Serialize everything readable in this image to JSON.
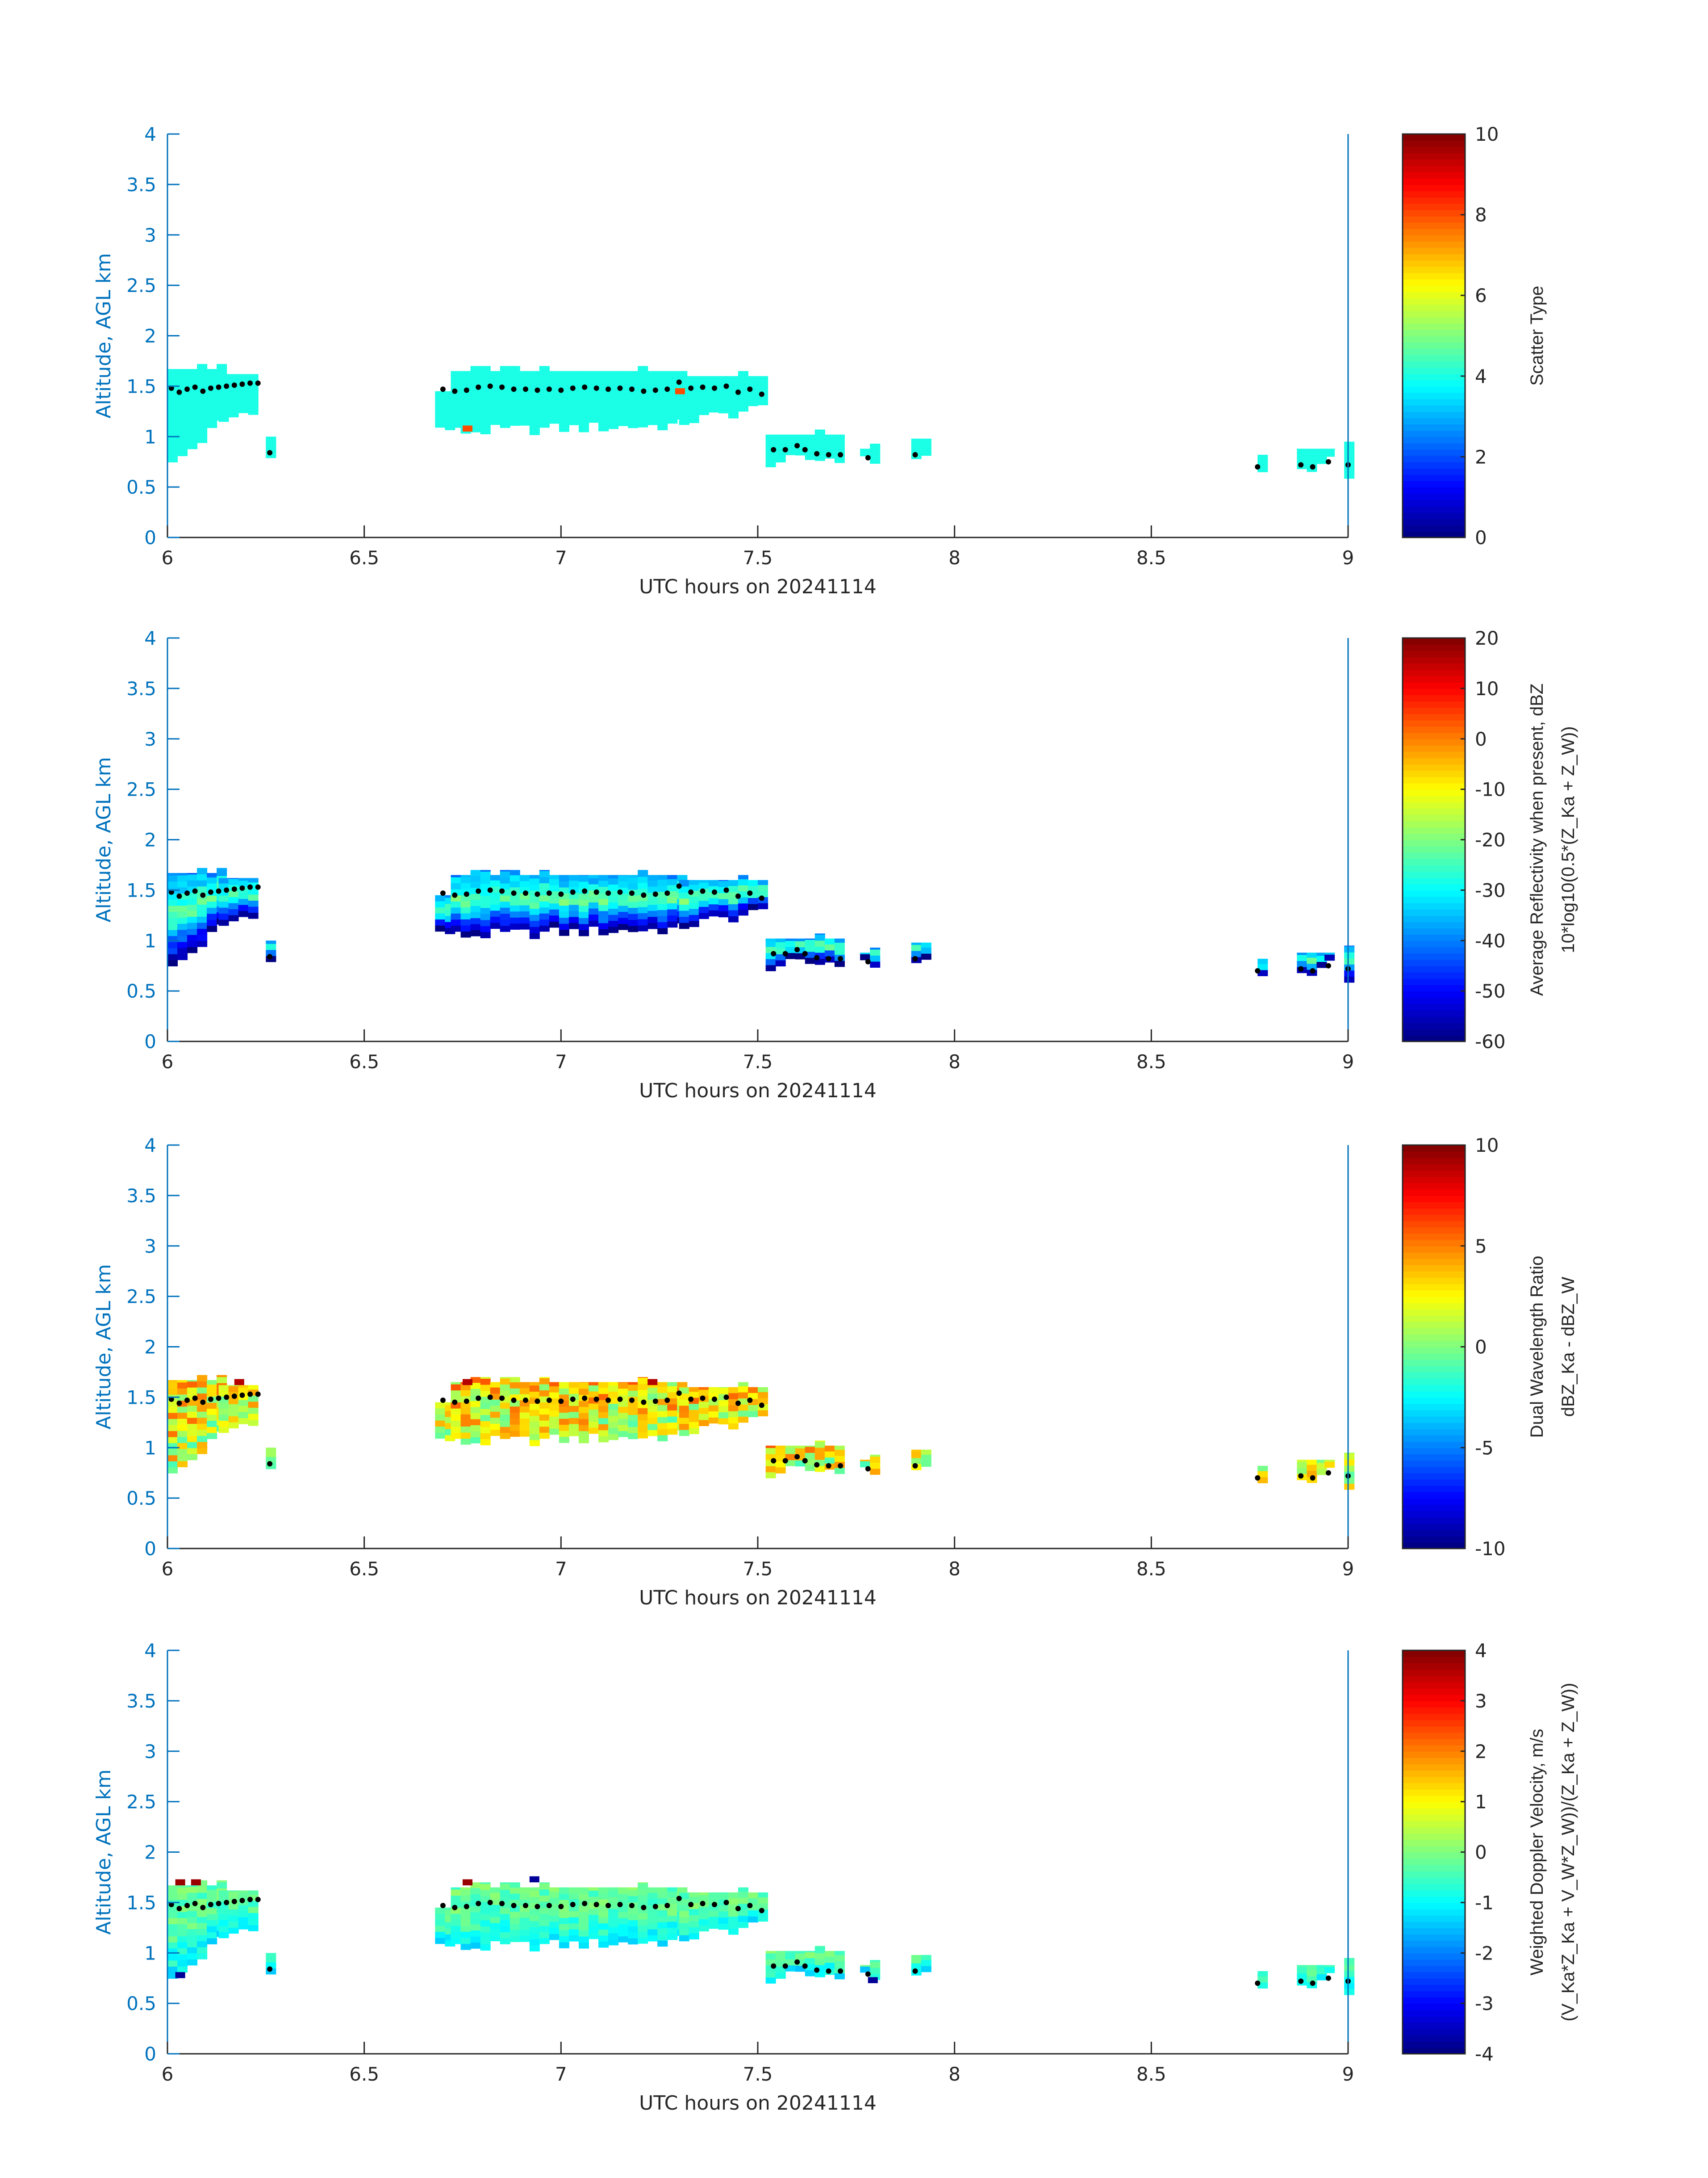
{
  "chart_data": [
    {
      "type": "heatmap",
      "ylabel": "Altitude, AGL km",
      "xlabel": "UTC hours on 20241114",
      "xlim": [
        6,
        9
      ],
      "ylim": [
        0,
        4
      ],
      "xticks": [
        "6",
        "6.5",
        "7",
        "7.5",
        "8",
        "8.5",
        "9"
      ],
      "yticks": [
        "0",
        "0.5",
        "1",
        "1.5",
        "2",
        "2.5",
        "3",
        "3.5",
        "4"
      ],
      "colorbar": {
        "label_lines": [
          "Scatter Type"
        ],
        "clim": [
          0,
          10
        ],
        "ticks": [
          "0",
          "2",
          "4",
          "6",
          "8",
          "10"
        ]
      },
      "value_rule": {
        "top": 4,
        "base": 4,
        "jitter": 0,
        "outliers": [
          [
            6.75,
            1.05,
            8
          ],
          [
            7.29,
            1.42,
            8
          ]
        ]
      }
    },
    {
      "type": "heatmap",
      "ylabel": "Altitude, AGL km",
      "xlabel": "UTC hours on 20241114",
      "xlim": [
        6,
        9
      ],
      "ylim": [
        0,
        4
      ],
      "xticks": [
        "6",
        "6.5",
        "7",
        "7.5",
        "8",
        "8.5",
        "9"
      ],
      "yticks": [
        "0",
        "0.5",
        "1",
        "1.5",
        "2",
        "2.5",
        "3",
        "3.5",
        "4"
      ],
      "colorbar": {
        "label_lines": [
          "Average Reflectivity when present, dBZ",
          "10*log10(0.5*(Z_Ka + Z_W))"
        ],
        "clim": [
          -60,
          20
        ],
        "ticks": [
          "-60",
          "-50",
          "-40",
          "-30",
          "-20",
          "-10",
          "0",
          "10",
          "20"
        ]
      },
      "value_rule": {
        "top": -40,
        "base": -58,
        "mid": -22,
        "jitter": 4,
        "outliers": []
      }
    },
    {
      "type": "heatmap",
      "ylabel": "Altitude, AGL km",
      "xlabel": "UTC hours on 20241114",
      "xlim": [
        6,
        9
      ],
      "ylim": [
        0,
        4
      ],
      "xticks": [
        "6",
        "6.5",
        "7",
        "7.5",
        "8",
        "8.5",
        "9"
      ],
      "yticks": [
        "0",
        "0.5",
        "1",
        "1.5",
        "2",
        "2.5",
        "3",
        "3.5",
        "4"
      ],
      "colorbar": {
        "label_lines": [
          "Dual Wavelength Ratio",
          "dBZ_Ka - dBZ_W"
        ],
        "clim": [
          -10,
          10
        ],
        "ticks": [
          "-10",
          "-5",
          "0",
          "5",
          "10"
        ]
      },
      "value_rule": {
        "top": 3,
        "base": 1.5,
        "mid": 2.5,
        "jitter": 3,
        "outliers": [
          [
            6.17,
            1.62,
            9
          ],
          [
            6.75,
            1.62,
            9
          ],
          [
            7.22,
            1.62,
            9
          ]
        ]
      }
    },
    {
      "type": "heatmap",
      "ylabel": "Altitude, AGL km",
      "xlabel": "UTC hours on 20241114",
      "xlim": [
        6,
        9
      ],
      "ylim": [
        0,
        4
      ],
      "xticks": [
        "6",
        "6.5",
        "7",
        "7.5",
        "8",
        "8.5",
        "9"
      ],
      "yticks": [
        "0",
        "0.5",
        "1",
        "1.5",
        "2",
        "2.5",
        "3",
        "3.5",
        "4"
      ],
      "colorbar": {
        "label_lines": [
          "Weighted Doppler Velocity, m/s",
          "(V_Ka*Z_Ka + V_W*Z_W))/(Z_Ka + Z_W))"
        ],
        "clim": [
          -4,
          4
        ],
        "ticks": [
          "-4",
          "-3",
          "-2",
          "-1",
          "0",
          "1",
          "2",
          "3",
          "4"
        ]
      },
      "value_rule": {
        "top": -0.2,
        "base": -1.1,
        "mid": -0.3,
        "jitter": 0.4,
        "outliers": [
          [
            6.02,
            1.67,
            3.8
          ],
          [
            6.06,
            1.67,
            3.8
          ],
          [
            6.75,
            1.67,
            3.8
          ],
          [
            6.92,
            1.7,
            -3.8
          ],
          [
            6.02,
            0.75,
            -3.8
          ],
          [
            7.78,
            0.7,
            -3.8
          ]
        ]
      }
    }
  ],
  "cloud_mask_columns": [
    [
      6.0,
      6.13,
      0.72,
      1.15,
      1.67
    ],
    [
      6.13,
      6.23,
      1.15,
      1.32,
      1.62
    ],
    [
      6.25,
      6.27,
      0.78,
      0.78,
      0.95
    ],
    [
      6.68,
      6.72,
      1.08,
      1.08,
      1.45
    ],
    [
      6.72,
      7.3,
      1.05,
      1.12,
      1.65
    ],
    [
      7.3,
      7.52,
      1.15,
      1.3,
      1.6
    ],
    [
      7.52,
      7.72,
      0.75,
      0.8,
      1.02
    ],
    [
      7.76,
      7.79,
      0.76,
      0.76,
      0.88
    ],
    [
      7.89,
      7.92,
      0.8,
      0.8,
      0.98
    ],
    [
      8.77,
      8.79,
      0.64,
      0.64,
      0.82
    ],
    [
      8.87,
      8.93,
      0.68,
      0.68,
      0.88
    ],
    [
      8.94,
      8.96,
      0.75,
      0.75,
      0.88
    ],
    [
      8.99,
      9.0,
      0.63,
      0.63,
      0.95
    ]
  ],
  "dot_series": {
    "x": [
      6.01,
      6.03,
      6.05,
      6.07,
      6.09,
      6.11,
      6.13,
      6.15,
      6.17,
      6.19,
      6.21,
      6.23,
      6.26,
      6.7,
      6.73,
      6.76,
      6.79,
      6.82,
      6.85,
      6.88,
      6.91,
      6.94,
      6.97,
      7.0,
      7.03,
      7.06,
      7.09,
      7.12,
      7.15,
      7.18,
      7.21,
      7.24,
      7.27,
      7.3,
      7.33,
      7.36,
      7.39,
      7.42,
      7.45,
      7.48,
      7.51,
      7.54,
      7.57,
      7.6,
      7.62,
      7.65,
      7.68,
      7.71,
      7.78,
      7.9,
      8.77,
      8.88,
      8.91,
      8.95,
      9.0
    ],
    "y": [
      1.48,
      1.44,
      1.47,
      1.49,
      1.45,
      1.48,
      1.49,
      1.5,
      1.51,
      1.52,
      1.53,
      1.53,
      0.84,
      1.47,
      1.45,
      1.46,
      1.49,
      1.5,
      1.49,
      1.47,
      1.47,
      1.46,
      1.47,
      1.46,
      1.48,
      1.49,
      1.48,
      1.47,
      1.48,
      1.47,
      1.45,
      1.46,
      1.47,
      1.54,
      1.48,
      1.49,
      1.48,
      1.5,
      1.44,
      1.47,
      1.42,
      0.87,
      0.87,
      0.91,
      0.87,
      0.83,
      0.82,
      0.82,
      0.79,
      0.82,
      0.7,
      0.72,
      0.7,
      0.75,
      0.72
    ]
  }
}
